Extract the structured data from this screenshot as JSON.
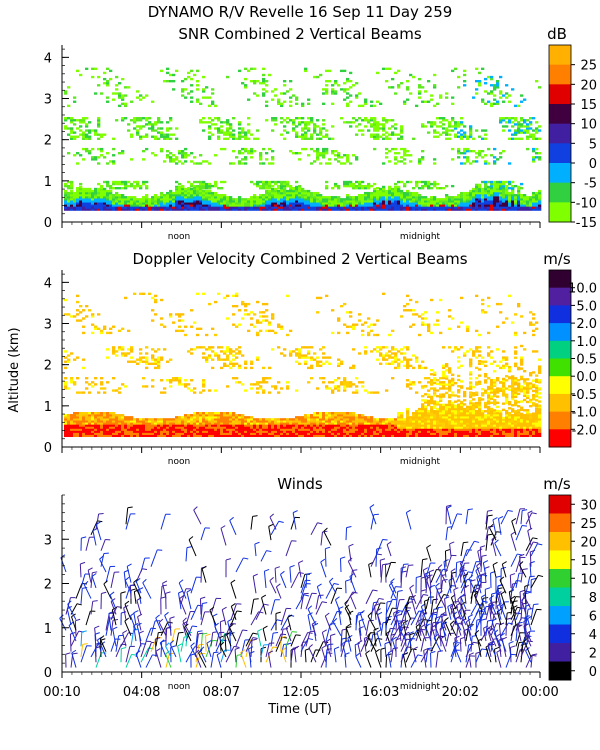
{
  "figure": {
    "title_line1": "DYNAMO R/V Revelle  16 Sep 11 Day 259",
    "shared_ylabel": "Altitude (km)",
    "shared_xlabel": "Time (UT)",
    "x_tick_labels": [
      "00:10",
      "04:08",
      "08:07",
      "12:05",
      "16:03",
      "20:02",
      "00:00"
    ],
    "x_annotations": [
      "noon",
      "midnight"
    ]
  },
  "chart_data": [
    {
      "type": "heatmap",
      "id": "snr",
      "title": "SNR Combined 2 Vertical Beams",
      "ylabel": "Altitude (km)",
      "ylim": [
        0,
        4.3
      ],
      "yticks": [
        "0",
        "1",
        "2",
        "3",
        "4"
      ],
      "colorbar_units": "dB",
      "colorbar_labels": [
        "25",
        "20",
        "15",
        "10",
        "5",
        "0",
        "-5",
        "-10",
        "-15"
      ],
      "colorbar_colors": [
        "#ffb000",
        "#ff7f00",
        "#e00000",
        "#400040",
        "#4020a0",
        "#1040e0",
        "#00b0ff",
        "#30d040",
        "#7fff00"
      ],
      "annotations": [
        "noon",
        "midnight"
      ]
    },
    {
      "type": "heatmap",
      "id": "doppler",
      "title": "Doppler Velocity Combined 2 Vertical Beams",
      "ylabel": "Altitude (km)",
      "ylim": [
        0,
        4.3
      ],
      "yticks": [
        "0",
        "1",
        "2",
        "3",
        "4"
      ],
      "colorbar_units": "m/s",
      "colorbar_labels": [
        "10.0",
        "5.0",
        "2.0",
        "1.0",
        "0.5",
        "0.0",
        "-0.5",
        "-1.0",
        "-2.0"
      ],
      "colorbar_colors": [
        "#300030",
        "#5020a0",
        "#1030e0",
        "#0090ff",
        "#00d080",
        "#40e000",
        "#ffff00",
        "#ffc000",
        "#ff8000",
        "#ff0000"
      ],
      "annotations": [
        "noon",
        "midnight"
      ]
    },
    {
      "type": "scatter",
      "id": "winds",
      "title": "Winds",
      "ylabel": "Altitude (km)",
      "ylim": [
        0,
        4
      ],
      "yticks": [
        "0",
        "1",
        "2",
        "3"
      ],
      "xlabel": "Time (UT)",
      "x_tick_labels": [
        "00:10",
        "04:08",
        "08:07",
        "12:05",
        "16:03",
        "20:02",
        "00:00"
      ],
      "colorbar_units": "m/s",
      "colorbar_labels": [
        "30",
        "25",
        "20",
        "15",
        "10",
        "8",
        "6",
        "4",
        "2",
        "0"
      ],
      "colorbar_colors": [
        "#e00000",
        "#ff7000",
        "#ffc000",
        "#ffff00",
        "#30d030",
        "#00d0a0",
        "#00a0ff",
        "#1030e0",
        "#4020a0",
        "#000000"
      ],
      "annotations": [
        "noon",
        "midnight"
      ]
    }
  ]
}
